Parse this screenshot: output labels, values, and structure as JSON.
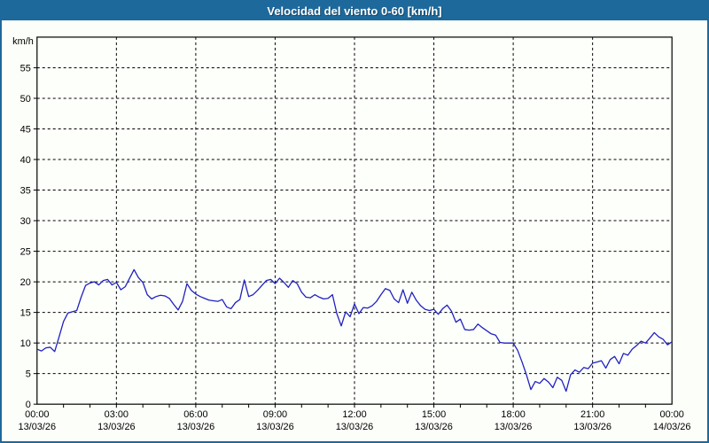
{
  "window": {
    "title": "Velocidad del viento 0-60 [km/h]"
  },
  "colors": {
    "titlebar_bg": "#1e699c",
    "frame_border": "#1e699c",
    "page_bg": "#fcfef9",
    "plot_bg": "#fdfffb",
    "line": "#2020c0",
    "grid": "#000000",
    "axis": "#000000",
    "text": "#000000",
    "title_text": "#ffffff"
  },
  "chart_data": {
    "type": "line",
    "title": "Velocidad del viento 0-60 [km/h]",
    "ylabel": "km/h",
    "ylim": [
      0,
      60
    ],
    "ytick_step": 5,
    "yticks_labeled": [
      0,
      5,
      10,
      15,
      20,
      25,
      30,
      35,
      40,
      45,
      50,
      55
    ],
    "x_hours_span": 24,
    "grid": "dashed",
    "legend": "none",
    "xticks": [
      {
        "time": "00:00",
        "date": "13/03/26"
      },
      {
        "time": "03:00",
        "date": "13/03/26"
      },
      {
        "time": "06:00",
        "date": "13/03/26"
      },
      {
        "time": "09:00",
        "date": "13/03/26"
      },
      {
        "time": "12:00",
        "date": "13/03/26"
      },
      {
        "time": "15:00",
        "date": "13/03/26"
      },
      {
        "time": "18:00",
        "date": "13/03/26"
      },
      {
        "time": "21:00",
        "date": "13/03/26"
      },
      {
        "time": "00:00",
        "date": "14/03/26"
      }
    ],
    "series": [
      {
        "name": "Velocidad del viento",
        "unit": "km/h",
        "sample_minutes": 10,
        "values": [
          9.0,
          8.7,
          9.2,
          9.3,
          8.6,
          11.0,
          13.5,
          14.9,
          15.1,
          15.3,
          17.5,
          19.4,
          19.8,
          20.0,
          19.5,
          20.2,
          20.4,
          19.5,
          19.9,
          18.7,
          19.2,
          20.6,
          22.0,
          20.7,
          19.9,
          17.9,
          17.2,
          17.6,
          17.8,
          17.7,
          17.3,
          16.3,
          15.4,
          16.8,
          19.7,
          18.6,
          18.0,
          17.6,
          17.3,
          17.0,
          16.9,
          16.8,
          17.1,
          15.9,
          15.6,
          16.6,
          17.1,
          20.3,
          17.6,
          17.9,
          18.6,
          19.4,
          20.2,
          20.4,
          19.7,
          20.6,
          19.9,
          19.1,
          20.2,
          19.7,
          18.3,
          17.5,
          17.4,
          17.9,
          17.5,
          17.2,
          17.3,
          17.9,
          14.8,
          12.8,
          15.1,
          14.3,
          16.4,
          14.8,
          15.8,
          15.7,
          16.1,
          16.8,
          17.9,
          18.9,
          18.6,
          17.2,
          16.6,
          18.7,
          16.5,
          18.3,
          17.0,
          16.1,
          15.5,
          15.3,
          15.5,
          14.7,
          15.6,
          16.2,
          15.2,
          13.4,
          13.9,
          12.2,
          12.1,
          12.2,
          13.1,
          12.5,
          12.0,
          11.5,
          11.3,
          10.1,
          10.0,
          10.0,
          10.0,
          8.8,
          6.9,
          4.8,
          2.4,
          3.7,
          3.4,
          4.2,
          3.6,
          2.7,
          4.4,
          3.9,
          2.1,
          4.8,
          5.6,
          5.2,
          6.0,
          5.8,
          6.7,
          6.9,
          7.1,
          5.9,
          7.3,
          7.8,
          6.6,
          8.3,
          8.0,
          9.0,
          9.6,
          10.3,
          10.0,
          10.8,
          11.7,
          11.0,
          10.6,
          9.7,
          10.2
        ]
      }
    ]
  }
}
